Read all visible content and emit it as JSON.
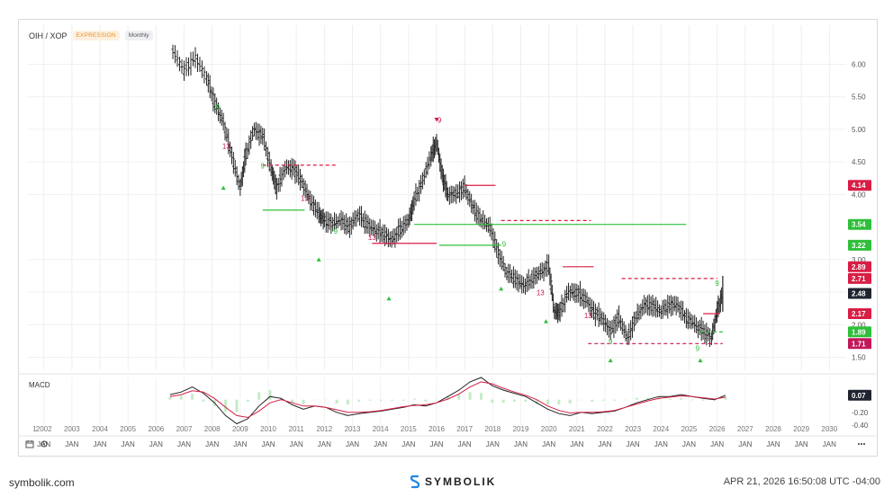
{
  "header": {
    "symbol": "OIH / XOP",
    "badge_expression": "EXPRESSION",
    "badge_interval": "Monthly"
  },
  "macd_label": "MACD",
  "footer": {
    "site": "symbolik.com",
    "brand": "SYMBOLIK",
    "timestamp": "APR 21, 2026 16:50:08 UTC -04:00"
  },
  "toolbar": {
    "calendar_icon": "calendar-icon",
    "settings_icon": "settings-icon",
    "more_icon": "more-icon"
  },
  "colors": {
    "candle": "#222222",
    "resistance": "#d81e45",
    "support": "#2fbf3a",
    "macd_line": "#222222",
    "signal_line": "#d81e45",
    "histogram": "#9be0a0",
    "countdown_green": "#2fbf3a",
    "countdown_magenta": "#c2185b"
  },
  "chart_data": {
    "type": "candlestick",
    "title": "OIH / XOP",
    "interval": "Monthly",
    "ylim": [
      1.3,
      6.6
    ],
    "y_ticks": [
      "6.00",
      "5.50",
      "5.00",
      "4.50",
      "4.00",
      "3.00",
      "2.50",
      "2.00",
      "1.50"
    ],
    "price_tags": [
      {
        "label": "4.14",
        "value": 4.14,
        "color": "#d81e45"
      },
      {
        "label": "3.54",
        "value": 3.54,
        "color": "#2fbf3a"
      },
      {
        "label": "3.22",
        "value": 3.22,
        "color": "#2fbf3a"
      },
      {
        "label": "2.89",
        "value": 2.89,
        "color": "#d81e45"
      },
      {
        "label": "2.71",
        "value": 2.71,
        "color": "#d81e45"
      },
      {
        "label": "2.48",
        "value": 2.48,
        "color": "#1f2430"
      },
      {
        "label": "2.17",
        "value": 2.17,
        "color": "#d81e45"
      },
      {
        "label": "1.89",
        "value": 1.89,
        "color": "#2fbf3a"
      },
      {
        "label": "1.71",
        "value": 1.71,
        "color": "#c2185b"
      }
    ],
    "series_close": {
      "x": [
        2006.6,
        2007.0,
        2007.4,
        2007.8,
        2008.1,
        2008.4,
        2008.7,
        2009.0,
        2009.2,
        2009.5,
        2009.8,
        2010.1,
        2010.3,
        2010.6,
        2010.9,
        2011.2,
        2011.5,
        2011.8,
        2012.0,
        2012.3,
        2012.6,
        2012.9,
        2013.2,
        2013.5,
        2013.8,
        2014.1,
        2014.4,
        2014.7,
        2015.0,
        2015.2,
        2015.5,
        2015.8,
        2016.0,
        2016.2,
        2016.4,
        2016.7,
        2017.0,
        2017.3,
        2017.6,
        2017.9,
        2018.2,
        2018.5,
        2018.8,
        2019.1,
        2019.4,
        2019.7,
        2020.0,
        2020.2,
        2020.4,
        2020.7,
        2021.0,
        2021.3,
        2021.6,
        2021.9,
        2022.2,
        2022.5,
        2022.8,
        2023.1,
        2023.4,
        2023.7,
        2024.0,
        2024.3,
        2024.6,
        2024.9,
        2025.2,
        2025.5,
        2025.8,
        2026.0,
        2026.2
      ],
      "y": [
        6.2,
        5.9,
        6.1,
        5.8,
        5.4,
        5.1,
        4.6,
        4.1,
        4.6,
        5.0,
        4.9,
        4.4,
        4.1,
        4.4,
        4.4,
        4.2,
        3.9,
        3.7,
        3.6,
        3.55,
        3.6,
        3.5,
        3.7,
        3.55,
        3.45,
        3.4,
        3.3,
        3.45,
        3.6,
        3.9,
        4.2,
        4.6,
        4.8,
        4.3,
        4.0,
        4.0,
        4.1,
        3.8,
        3.6,
        3.5,
        3.1,
        2.8,
        2.7,
        2.6,
        2.7,
        2.8,
        2.9,
        2.2,
        2.2,
        2.5,
        2.5,
        2.4,
        2.2,
        2.1,
        1.9,
        2.1,
        1.8,
        2.1,
        2.3,
        2.3,
        2.2,
        2.3,
        2.3,
        2.1,
        2.0,
        1.9,
        1.8,
        2.2,
        2.48
      ]
    },
    "levels": [
      {
        "value": 4.45,
        "from": 2009.8,
        "to": 2012.4,
        "color": "#d81e45",
        "style": "dash"
      },
      {
        "value": 4.14,
        "from": 2017.0,
        "to": 2018.1,
        "color": "#d81e45",
        "style": "solid"
      },
      {
        "value": 3.76,
        "from": 2009.8,
        "to": 2011.3,
        "color": "#2fbf3a",
        "style": "solid"
      },
      {
        "value": 3.54,
        "from": 2015.2,
        "to": 2024.9,
        "color": "#2fbf3a",
        "style": "solid"
      },
      {
        "value": 3.22,
        "from": 2016.1,
        "to": 2018.3,
        "color": "#2fbf3a",
        "style": "solid"
      },
      {
        "value": 3.25,
        "from": 2013.7,
        "to": 2016.0,
        "color": "#d81e45",
        "style": "solid"
      },
      {
        "value": 3.6,
        "from": 2018.3,
        "to": 2021.5,
        "color": "#d81e45",
        "style": "dash"
      },
      {
        "value": 2.89,
        "from": 2020.5,
        "to": 2021.6,
        "color": "#d81e45",
        "style": "solid"
      },
      {
        "value": 2.71,
        "from": 2022.6,
        "to": 2026.0,
        "color": "#d81e45",
        "style": "dash"
      },
      {
        "value": 2.17,
        "from": 2025.5,
        "to": 2026.1,
        "color": "#d81e45",
        "style": "solid"
      },
      {
        "value": 1.71,
        "from": 2021.4,
        "to": 2026.2,
        "color": "#c2185b",
        "style": "dash"
      },
      {
        "value": 1.89,
        "from": 2025.4,
        "to": 2026.2,
        "color": "#2fbf3a",
        "style": "dash"
      }
    ],
    "macd": {
      "ylim": [
        -0.5,
        0.35
      ],
      "y_ticks": [
        "-0.20",
        "-0.40"
      ],
      "macd_tag": "0.07",
      "macd": [
        0.08,
        0.12,
        0.2,
        0.1,
        -0.05,
        -0.25,
        -0.38,
        -0.3,
        -0.1,
        0.05,
        0.02,
        -0.08,
        -0.15,
        -0.1,
        -0.12,
        -0.2,
        -0.25,
        -0.22,
        -0.2,
        -0.18,
        -0.15,
        -0.12,
        -0.08,
        -0.1,
        -0.05,
        0.05,
        0.15,
        0.28,
        0.35,
        0.22,
        0.15,
        0.1,
        0.05,
        -0.05,
        -0.15,
        -0.22,
        -0.25,
        -0.2,
        -0.22,
        -0.2,
        -0.18,
        -0.12,
        -0.05,
        0.0,
        0.05,
        0.05,
        0.08,
        0.05,
        0.02,
        0.0,
        0.07
      ],
      "signal": [
        0.05,
        0.08,
        0.14,
        0.12,
        0.02,
        -0.12,
        -0.25,
        -0.28,
        -0.18,
        -0.05,
        0.0,
        -0.05,
        -0.1,
        -0.1,
        -0.12,
        -0.16,
        -0.2,
        -0.2,
        -0.19,
        -0.17,
        -0.14,
        -0.11,
        -0.09,
        -0.08,
        -0.05,
        0.01,
        0.09,
        0.2,
        0.28,
        0.25,
        0.18,
        0.12,
        0.07,
        0.0,
        -0.1,
        -0.17,
        -0.21,
        -0.2,
        -0.2,
        -0.19,
        -0.17,
        -0.12,
        -0.07,
        -0.02,
        0.02,
        0.04,
        0.06,
        0.05,
        0.03,
        0.01,
        0.04
      ]
    },
    "x_year_labels": [
      "2002",
      "2003",
      "2004",
      "2005",
      "2006",
      "2007",
      "2008",
      "2009",
      "2010",
      "2011",
      "2012",
      "2013",
      "2014",
      "2015",
      "2016",
      "2017",
      "2018",
      "2019",
      "2020",
      "2021",
      "2022",
      "2023",
      "2024",
      "2025",
      "2026",
      "2027",
      "2028",
      "2029",
      "2030"
    ],
    "x_first_label": "1",
    "x_month_label": "JAN",
    "xlim": [
      2001.4,
      2030.6
    ]
  }
}
